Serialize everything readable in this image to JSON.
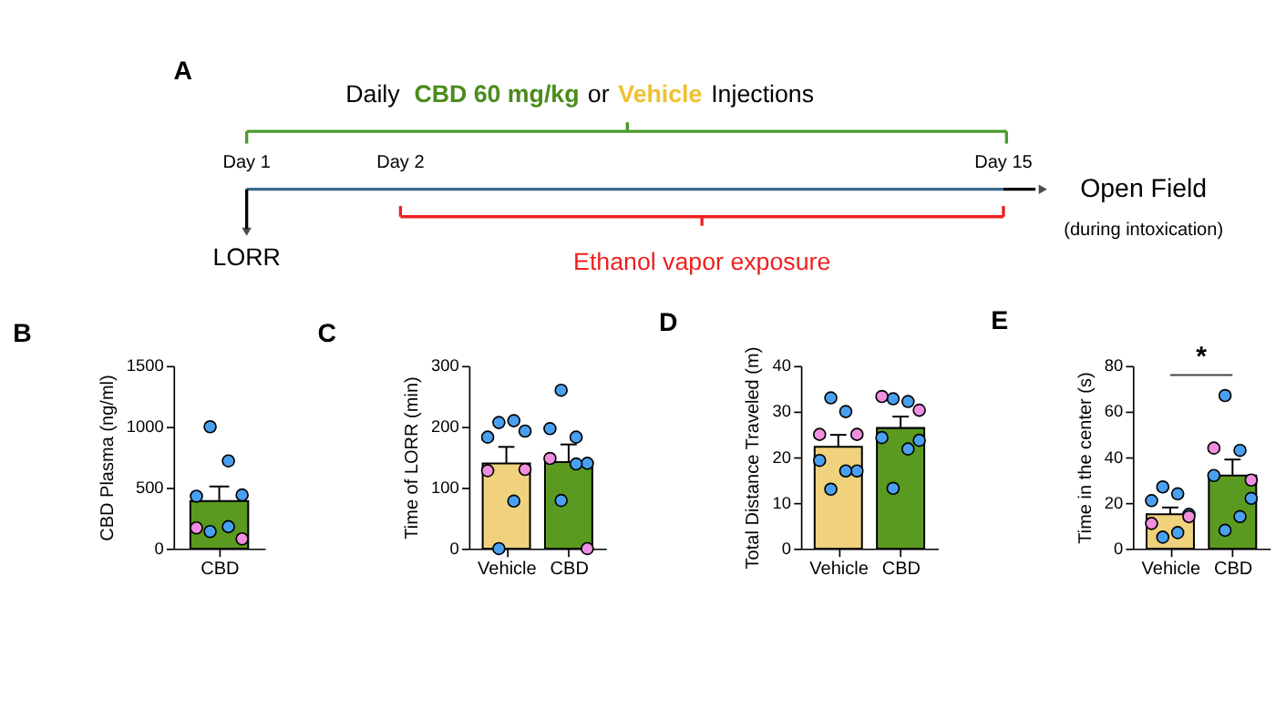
{
  "chart_data": [
    {
      "type": "other",
      "title": "A",
      "annotations": [
        "Daily",
        "CBD 60 mg/kg",
        "or",
        "Vehicle",
        "Injections",
        "Day 1",
        "Day 2",
        "Day 15",
        "LORR",
        "Ethanol vapor exposure",
        "Open Field",
        "(during intoxication)"
      ]
    },
    {
      "type": "bar",
      "title": "B",
      "categories": [
        "CBD"
      ],
      "ylabel": "CBD Plasma (ng/ml)",
      "ylim": [
        0,
        1500
      ],
      "yticks": [
        0,
        500,
        1000,
        1500
      ],
      "grid": false,
      "legend": false,
      "series": [
        {
          "type": "bar",
          "colors": [
            "#5a9a20"
          ],
          "values": [
            390
          ],
          "errors": [
            [
              390,
              510
            ]
          ]
        },
        {
          "type": "scatter",
          "color": "#4aa0f0",
          "x": [
            "CBD",
            "CBD",
            "CBD",
            "CBD",
            "CBD",
            "CBD"
          ],
          "values": [
            1000,
            720,
            430,
            440,
            180,
            140
          ],
          "marker": "circle"
        },
        {
          "type": "scatter",
          "color": "#f08ee0",
          "x": [
            "CBD",
            "CBD"
          ],
          "values": [
            170,
            80
          ],
          "marker": "circle"
        }
      ]
    },
    {
      "type": "bar",
      "title": "C",
      "categories": [
        "Vehicle",
        "CBD"
      ],
      "ylabel": "Time of LORR (min)",
      "ylim": [
        0,
        300
      ],
      "yticks": [
        0,
        100,
        200,
        300
      ],
      "grid": false,
      "legend": false,
      "series": [
        {
          "type": "bar",
          "colors": [
            "#f0d27e",
            "#5a9a20"
          ],
          "values": [
            140,
            142
          ],
          "errors": [
            [
              140,
              167
            ],
            [
              142,
              171
            ]
          ]
        },
        {
          "type": "scatter",
          "color": "#4aa0f0",
          "x": [
            "Vehicle",
            "Vehicle",
            "Vehicle",
            "Vehicle",
            "Vehicle",
            "Vehicle",
            "CBD",
            "CBD",
            "CBD",
            "CBD",
            "CBD",
            "CBD"
          ],
          "values": [
            207,
            210,
            183,
            193,
            78,
            0,
            260,
            183,
            197,
            140,
            139,
            79
          ],
          "marker": "circle"
        },
        {
          "type": "scatter",
          "color": "#f08ee0",
          "x": [
            "Vehicle",
            "Vehicle",
            "CBD",
            "CBD"
          ],
          "values": [
            128,
            130,
            148,
            0
          ],
          "marker": "circle"
        }
      ]
    },
    {
      "type": "bar",
      "title": "D",
      "categories": [
        "Vehicle",
        "CBD"
      ],
      "ylabel": "Total Distance Traveled (m)",
      "ylim": [
        0,
        40
      ],
      "yticks": [
        0,
        10,
        20,
        30,
        40
      ],
      "grid": false,
      "legend": false,
      "series": [
        {
          "type": "bar",
          "colors": [
            "#f0d27e",
            "#5a9a20"
          ],
          "values": [
            22.3,
            26.4
          ],
          "errors": [
            [
              22.3,
              24.9
            ],
            [
              26.4,
              28.9
            ]
          ]
        },
        {
          "type": "scatter",
          "color": "#4aa0f0",
          "x": [
            "Vehicle",
            "Vehicle",
            "Vehicle",
            "Vehicle",
            "Vehicle",
            "Vehicle",
            "CBD",
            "CBD",
            "CBD",
            "CBD",
            "CBD",
            "CBD"
          ],
          "values": [
            33,
            30,
            19.3,
            17,
            17,
            13,
            32.8,
            32.2,
            24.3,
            23.7,
            21.8,
            13.2
          ],
          "marker": "circle"
        },
        {
          "type": "scatter",
          "color": "#f08ee0",
          "x": [
            "Vehicle",
            "Vehicle",
            "CBD",
            "CBD"
          ],
          "values": [
            25,
            25,
            33.3,
            30.3
          ],
          "marker": "circle"
        }
      ]
    },
    {
      "type": "bar",
      "title": "E",
      "categories": [
        "Vehicle",
        "CBD"
      ],
      "ylabel": "Time in the center (s)",
      "ylim": [
        0,
        80
      ],
      "yticks": [
        0,
        20,
        40,
        60,
        80
      ],
      "grid": false,
      "legend": false,
      "annotations": [
        "*"
      ],
      "series": [
        {
          "type": "bar",
          "colors": [
            "#f0d27e",
            "#5a9a20"
          ],
          "values": [
            15,
            32
          ],
          "errors": [
            [
              15,
              18
            ],
            [
              32,
              39
            ]
          ]
        },
        {
          "type": "scatter",
          "color": "#4aa0f0",
          "x": [
            "Vehicle",
            "Vehicle",
            "Vehicle",
            "Vehicle",
            "Vehicle",
            "Vehicle",
            "CBD",
            "CBD",
            "CBD",
            "CBD",
            "CBD",
            "CBD"
          ],
          "values": [
            27,
            24,
            21,
            15,
            7,
            5,
            67,
            43,
            32,
            22,
            14,
            8
          ],
          "marker": "circle"
        },
        {
          "type": "scatter",
          "color": "#f08ee0",
          "x": [
            "Vehicle",
            "Vehicle",
            "CBD",
            "CBD"
          ],
          "values": [
            11,
            14,
            44,
            30
          ],
          "marker": "circle"
        }
      ]
    }
  ]
}
